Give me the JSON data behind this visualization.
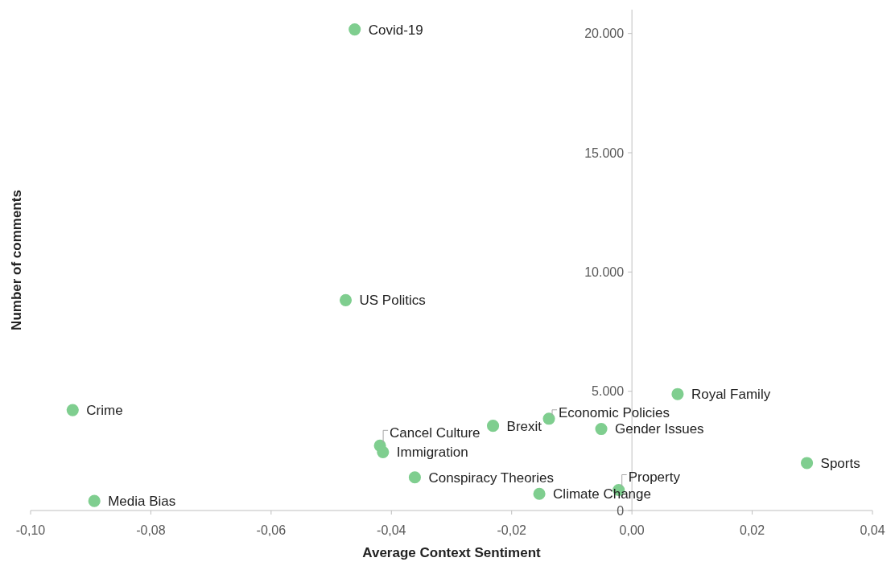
{
  "chart_data": {
    "type": "scatter",
    "xlabel": "Average Context Sentiment",
    "ylabel": "Number of comments",
    "x": [
      -0.0461,
      -0.0476,
      -0.093,
      -0.0894,
      -0.0419,
      -0.0414,
      -0.0361,
      -0.0231,
      -0.0138,
      -0.0154,
      -0.0051,
      -0.0022,
      0.0076,
      0.0291
    ],
    "series": [
      {
        "color": "#7fce8f",
        "values": [
          20170,
          8820,
          4210,
          400,
          2720,
          2450,
          1390,
          3550,
          3850,
          700,
          3420,
          860,
          4880,
          1990
        ]
      }
    ],
    "marker": "circle",
    "xlim": [
      -0.1,
      0.04
    ],
    "ylim": [
      0,
      21000
    ],
    "xticks": [
      {
        "value": -0.1,
        "label": "-0,10"
      },
      {
        "value": -0.08,
        "label": "-0,08"
      },
      {
        "value": -0.06,
        "label": "-0,06"
      },
      {
        "value": -0.04,
        "label": "-0,04"
      },
      {
        "value": -0.02,
        "label": "-0,02"
      },
      {
        "value": 0,
        "label": "0,00"
      },
      {
        "value": 0.02,
        "label": "0,02"
      },
      {
        "value": 0.04,
        "label": "0,04"
      }
    ],
    "yticks": [
      0,
      {
        "value": 5000,
        "label": "5.000"
      },
      {
        "value": 10000,
        "label": "10.000"
      },
      {
        "value": 15000,
        "label": "15.000"
      },
      {
        "value": 20000,
        "label": "20.000"
      }
    ],
    "annotations": [
      {
        "text": "Covid-19",
        "x": -0.0461,
        "y": 20170
      },
      {
        "text": "US Politics",
        "x": -0.0476,
        "y": 8820
      },
      {
        "text": "Crime",
        "x": -0.093,
        "y": 4210
      },
      {
        "text": "Media Bias",
        "x": -0.0894,
        "y": 400
      },
      {
        "text": "Cancel Culture",
        "x": -0.0419,
        "y": 2720
      },
      {
        "text": "Immigration",
        "x": -0.0414,
        "y": 2450
      },
      {
        "text": "Conspiracy Theories",
        "x": -0.0361,
        "y": 1390
      },
      {
        "text": "Brexit",
        "x": -0.0231,
        "y": 3550
      },
      {
        "text": "Economic Policies",
        "x": -0.0138,
        "y": 3850
      },
      {
        "text": "Climate Change",
        "x": -0.0154,
        "y": 700
      },
      {
        "text": "Gender Issues",
        "x": -0.0051,
        "y": 3420
      },
      {
        "text": "Property",
        "x": -0.0022,
        "y": 860
      },
      {
        "text": "Royal Family",
        "x": 0.0076,
        "y": 4880
      },
      {
        "text": "Sports",
        "x": 0.0291,
        "y": 1990
      }
    ]
  }
}
